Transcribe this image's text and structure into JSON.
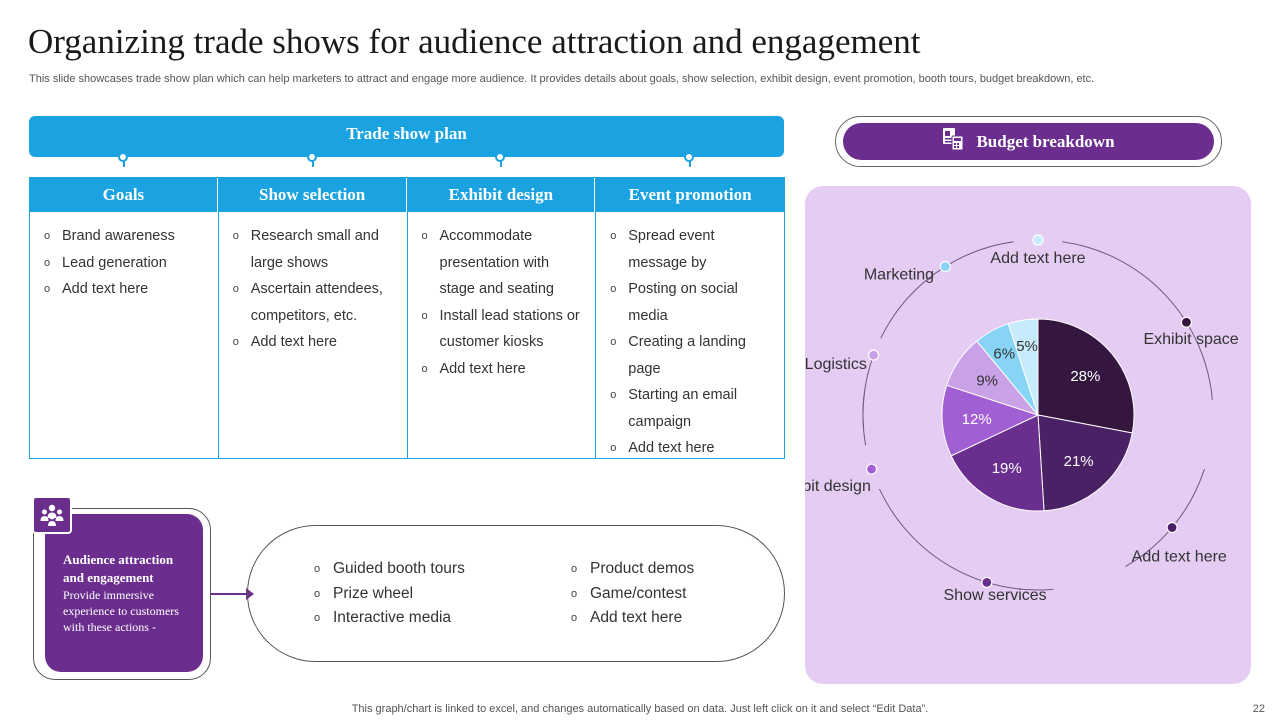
{
  "title": "Organizing trade shows for audience attraction and engagement",
  "subtitle": "This slide showcases trade show plan which can help marketers to attract and engage more audience. It provides details about goals, show selection, exhibit design, event promotion, booth tours, budget breakdown, etc.",
  "plan": {
    "header": "Trade show plan",
    "columns": [
      {
        "heading": "Goals",
        "items": [
          "Brand awareness",
          "Lead generation",
          "Add text here"
        ]
      },
      {
        "heading": "Show selection",
        "items": [
          "Research small and large shows",
          "Ascertain attendees, competitors, etc.",
          "Add text here"
        ]
      },
      {
        "heading": "Exhibit design",
        "items": [
          "Accommodate presentation with stage and seating",
          "Install lead stations or customer kiosks",
          "Add text here"
        ]
      },
      {
        "heading": "Event promotion",
        "items": [
          "Spread event message by",
          "Posting on social media",
          "Creating a landing page",
          "Starting an email campaign",
          "Add text here"
        ]
      }
    ]
  },
  "audience": {
    "title": "Audience attraction and engagement",
    "text": "Provide immersive experience to customers with these actions -",
    "icon": "people-group-icon"
  },
  "actions": {
    "left": [
      "Guided booth tours",
      "Prize wheel",
      "Interactive media"
    ],
    "right": [
      "Product demos",
      "Game/contest",
      "Add text here"
    ]
  },
  "budget": {
    "label": "Budget breakdown",
    "icon": "budget-document-icon"
  },
  "chart_data": {
    "type": "pie",
    "title": "Budget breakdown",
    "slices": [
      {
        "label": "Exhibit space",
        "value": 28,
        "display": "28%",
        "color": "#34163f"
      },
      {
        "label": "Add text here",
        "value": 21,
        "display": "21%",
        "color": "#4a2165"
      },
      {
        "label": "Show services",
        "value": 19,
        "display": "19%",
        "color": "#6a2f8e"
      },
      {
        "label": "Exhibit design",
        "value": 12,
        "display": "12%",
        "color": "#a25fd3"
      },
      {
        "label": "Logistics",
        "value": 9,
        "display": "9%",
        "color": "#c9a1e6"
      },
      {
        "label": "Marketing",
        "value": 6,
        "display": "6%",
        "color": "#88d4f7"
      },
      {
        "label": "Add text here",
        "value": 5,
        "display": "5%",
        "color": "#c6ecfc"
      }
    ]
  },
  "footer": {
    "note": "This graph/chart is linked to excel,  and changes automatically based on data. Just left click on it and select “Edit Data”.",
    "page": "22"
  },
  "colors": {
    "blue": "#1ba3e1",
    "purple": "#6b2e8e",
    "panel": "#e4ccf3"
  }
}
